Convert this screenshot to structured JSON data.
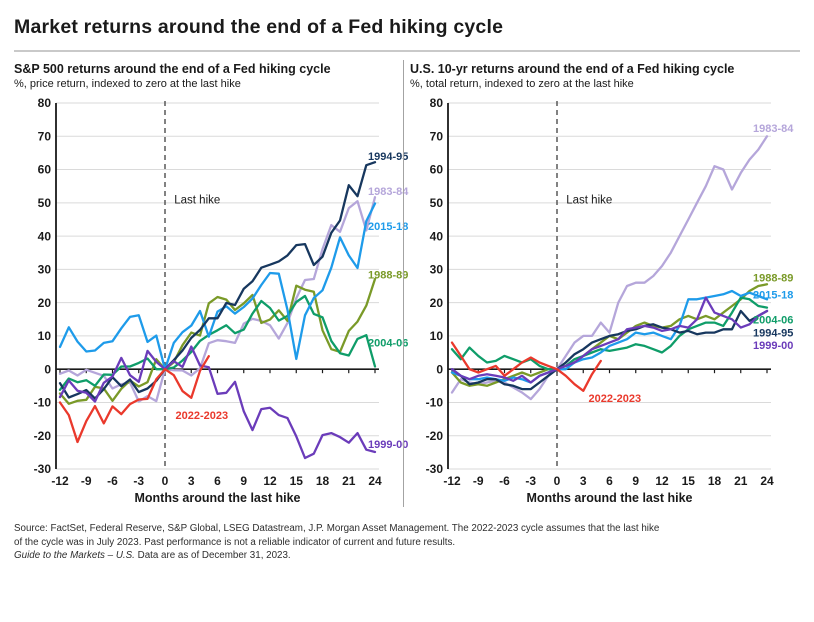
{
  "header": {
    "title": "Market returns around the end of a Fed hiking cycle"
  },
  "footer": {
    "line1": "Source: FactSet, Federal Reserve, S&P Global, LSEG Datastream, J.P. Morgan Asset Management. The 2022-2023 cycle assumes that the last hike",
    "line2": "of the cycle was in July 2023. Past performance is not a reliable indicator of current and future results.",
    "line3_italic": "Guide to the Markets – U.S.",
    "line3_rest": "Data are as of December 31, 2023."
  },
  "style_colors": {
    "axis": "#1a1a1a",
    "grid": "#dadada",
    "dashed_line": "#4d4d4d",
    "divider": "#a3a3a3"
  },
  "chart_data": [
    {
      "type": "line",
      "title": "S&P 500 returns around the end of a Fed hiking cycle",
      "subtitle": "%, price return, indexed to zero at the last hike",
      "xlabel": "Months around the last hike",
      "x_start": -12,
      "x_ticks": [
        -12,
        -9,
        -6,
        -3,
        0,
        3,
        6,
        9,
        12,
        15,
        18,
        21,
        24
      ],
      "ylim": [
        -30,
        80
      ],
      "y_tick_step": 10,
      "grid": true,
      "legend_position": "end-of-line labels",
      "annotation": {
        "text": "Last hike",
        "x": 0.6,
        "y": 51
      },
      "series": [
        {
          "name": "1983-84",
          "color": "#b5a6da",
          "label_x": 23.2,
          "label_y": 53.5,
          "values": [
            -1.4,
            -0.4,
            -1.9,
            -0.2,
            -1.1,
            -2.0,
            -5.8,
            -4.5,
            -4.0,
            -9.7,
            -8.1,
            -9.6,
            0,
            -0.3,
            -0.4,
            -1.9,
            0.3,
            7.8,
            8.7,
            8.4,
            7.9,
            13.7,
            15.1,
            14.5,
            13.2,
            9.2,
            13.9,
            21.3,
            26.8,
            27.1,
            36.1,
            43.3,
            41.3,
            48.4,
            50.5,
            41.7,
            51.7
          ]
        },
        {
          "name": "1988-89",
          "color": "#7a9a28",
          "label_x": 23.2,
          "label_y": 28.5,
          "values": [
            -7.3,
            -10.4,
            -9.5,
            -9.2,
            -5.3,
            -5.8,
            -9.5,
            -5.9,
            -3.4,
            -5.2,
            -3.9,
            3.0,
            0,
            2.1,
            7.2,
            11.0,
            10.1,
            19.8,
            21.7,
            20.9,
            17.8,
            19.8,
            22.3,
            13.9,
            14.9,
            17.7,
            14.5,
            25.1,
            23.9,
            23.3,
            11.7,
            6.0,
            5.2,
            11.5,
            14.3,
            19.1,
            27.1
          ]
        },
        {
          "name": "2004-06",
          "color": "#0f9d69",
          "label_x": 23.2,
          "label_y": 8,
          "values": [
            -6.2,
            -2.8,
            -3.9,
            -3.3,
            -5.0,
            -1.6,
            -1.7,
            0.8,
            0.8,
            1.9,
            3.2,
            0.0,
            0,
            0.5,
            2.6,
            5.2,
            8.5,
            10.3,
            11.7,
            13.2,
            10.8,
            11.9,
            16.7,
            20.5,
            18.4,
            14.6,
            16.0,
            20.2,
            22.0,
            16.6,
            15.6,
            8.5,
            4.8,
            4.1,
            9.1,
            10.2,
            0.8
          ]
        },
        {
          "name": "2015-18",
          "color": "#1e9bea",
          "label_x": 23.2,
          "label_y": 43,
          "values": [
            6.7,
            12.6,
            8.3,
            5.3,
            5.6,
            7.9,
            8.4,
            12.3,
            15.7,
            16.2,
            8.2,
            10.1,
            0,
            7.9,
            11.1,
            13.1,
            17.5,
            9.8,
            17.3,
            18.9,
            16.7,
            18.7,
            21.2,
            25.3,
            28.9,
            28.7,
            17.8,
            3.1,
            16.2,
            21.4,
            23.7,
            30.5,
            39.6,
            34.2,
            30.4,
            44.5,
            49.8
          ]
        },
        {
          "name": "1994-95",
          "color": "#17375e",
          "label_x": 23.2,
          "label_y": 64,
          "values": [
            -4.2,
            -8.5,
            -7.5,
            -6.3,
            -8.8,
            -6.0,
            -2.4,
            -5.1,
            -3.1,
            -6.9,
            -5.8,
            -3.5,
            0,
            2.7,
            5.6,
            9.4,
            11.8,
            15.3,
            15.3,
            19.9,
            19.3,
            24.2,
            26.4,
            30.5,
            31.4,
            32.4,
            34.2,
            37.3,
            37.6,
            31.3,
            33.8,
            41.0,
            44.7,
            55.3,
            52.0,
            61.3,
            62.2
          ]
        },
        {
          "name": "1999-00",
          "color": "#6b3cba",
          "label_x": 23.2,
          "label_y": -22.5,
          "values": [
            -8.4,
            -3.4,
            -6.5,
            -7.1,
            -9.7,
            -4.1,
            -2.2,
            3.4,
            -1.8,
            -3.8,
            5.5,
            2.2,
            0,
            2.4,
            0.7,
            6.8,
            1.1,
            0.6,
            -7.4,
            -7.1,
            -3.8,
            -12.7,
            -18.3,
            -12.0,
            -11.6,
            -13.8,
            -14.7,
            -20.2,
            -26.7,
            -25.4,
            -19.8,
            -19.2,
            -20.4,
            -22.1,
            -19.2,
            -24.2,
            -24.9
          ]
        },
        {
          "name": "2022-2023",
          "color": "#ea392c",
          "label_x": 1.2,
          "label_y": -13.8,
          "values": [
            -10.0,
            -13.8,
            -21.9,
            -15.6,
            -11.1,
            -16.3,
            -11.2,
            -13.5,
            -10.5,
            -9.1,
            -8.9,
            -3.0,
            0,
            -1.8,
            -6.6,
            -8.6,
            -0.5,
            3.9
          ]
        }
      ]
    },
    {
      "type": "line",
      "title": "U.S. 10-yr returns around the end of a Fed hiking cycle",
      "subtitle": "%, total return, indexed to zero at the last hike",
      "xlabel": "Months around the last hike",
      "x_start": -12,
      "x_ticks": [
        -12,
        -9,
        -6,
        -3,
        0,
        3,
        6,
        9,
        12,
        15,
        18,
        21,
        24
      ],
      "ylim": [
        -30,
        80
      ],
      "y_tick_step": 10,
      "grid": true,
      "legend_position": "end-of-line labels",
      "annotation": {
        "text": "Last hike",
        "x": 0.6,
        "y": 51
      },
      "series": [
        {
          "name": "1983-84",
          "color": "#b5a6da",
          "label_x": 22.4,
          "label_y": 72.5,
          "values": [
            -7,
            -3,
            -4,
            -4.5,
            -4,
            -3.5,
            -4,
            -5.5,
            -7,
            -9,
            -6,
            -2,
            0,
            4,
            8,
            10,
            10,
            14,
            11,
            20,
            25,
            26,
            26,
            28,
            31,
            35,
            40,
            45,
            50,
            55,
            61,
            60,
            54,
            59,
            63,
            66,
            70
          ]
        },
        {
          "name": "1988-89",
          "color": "#7a9a28",
          "label_x": 22.4,
          "label_y": 27.5,
          "values": [
            -1,
            -4,
            -5,
            -4.5,
            -5,
            -4,
            -3,
            -2,
            -1,
            -2,
            -1,
            0,
            0,
            1,
            2,
            4,
            6,
            8,
            10,
            9,
            11,
            13,
            14,
            13,
            12.5,
            13,
            15,
            16,
            15,
            16,
            15,
            17,
            19,
            21,
            23.5,
            25,
            25.5
          ]
        },
        {
          "name": "2004-06",
          "color": "#0f9d69",
          "label_x": 22.4,
          "label_y": 15,
          "values": [
            6,
            3,
            6.5,
            4,
            2,
            2.5,
            4,
            3,
            2,
            3,
            1,
            0,
            0,
            1,
            3,
            4,
            5,
            6,
            5.5,
            6,
            6.5,
            7.5,
            7,
            6,
            5,
            7,
            10,
            12,
            13,
            14,
            14,
            13,
            17,
            21.5,
            21,
            19,
            18.5
          ]
        },
        {
          "name": "2015-18",
          "color": "#1e9bea",
          "label_x": 22.4,
          "label_y": 22.5,
          "values": [
            -1,
            -2,
            -3,
            -3,
            -2.5,
            -3,
            -3.5,
            -2.5,
            -3,
            -4,
            -2,
            -1,
            0,
            0,
            2,
            3,
            3.5,
            5,
            7,
            8,
            9,
            11,
            10.5,
            11,
            10,
            9,
            13,
            21,
            21,
            21.5,
            22,
            22.5,
            23.5,
            22,
            23,
            22,
            21
          ]
        },
        {
          "name": "1994-95",
          "color": "#17375e",
          "label_x": 22.4,
          "label_y": 11,
          "values": [
            0,
            -2,
            -4.5,
            -4,
            -3,
            -3,
            -4.5,
            -5,
            -6,
            -6,
            -4,
            -2,
            0,
            2,
            4.5,
            6,
            8,
            9,
            10,
            10.5,
            11.5,
            12,
            13,
            13.5,
            12.5,
            12,
            11,
            11.5,
            10.5,
            11,
            11,
            12,
            12,
            17.5,
            14.5,
            16,
            17.5
          ]
        },
        {
          "name": "1999-00",
          "color": "#6b3cba",
          "label_x": 22.4,
          "label_y": 7.2,
          "values": [
            0,
            -2,
            -3,
            -2,
            -1.5,
            -2,
            -2.5,
            -3.5,
            -2,
            -4,
            -2,
            -1,
            0,
            1,
            2,
            4,
            6,
            7,
            8,
            9,
            12,
            12.5,
            13,
            12.5,
            11.5,
            12,
            13,
            12.5,
            15,
            21.5,
            17,
            16,
            15,
            12.5,
            13.5,
            16,
            17.5
          ]
        },
        {
          "name": "2022-2023",
          "color": "#ea392c",
          "label_x": 3.6,
          "label_y": -8.7,
          "values": [
            8,
            4,
            0,
            -1,
            0,
            1,
            -2,
            0,
            2,
            3.5,
            2,
            1,
            0,
            -2,
            -4.5,
            -6.5,
            -1.5,
            2.5
          ]
        }
      ]
    }
  ]
}
